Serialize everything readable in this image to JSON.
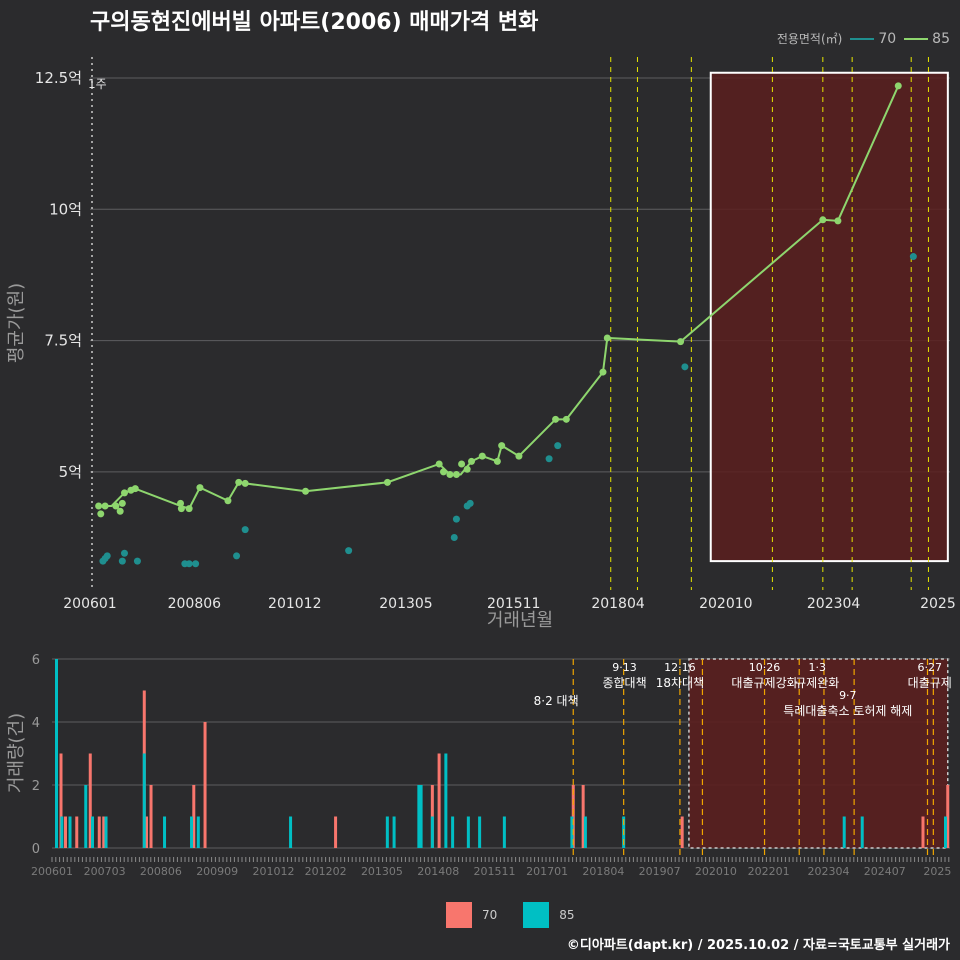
{
  "title": "구의동현진에버빌 아파트(2006) 매매가격 변화",
  "legend": {
    "title": "전용면적(㎡)",
    "items": [
      {
        "label": "70",
        "color": "#1f8f8f"
      },
      {
        "label": "85",
        "color": "#8ed66e"
      }
    ]
  },
  "bottom_legend": [
    {
      "label": "70",
      "color": "#f8766d"
    },
    {
      "label": "85",
      "color": "#00bfc4"
    }
  ],
  "footer": "©디아파트(dapt.kr) / 2025.10.02 / 자료=국토교통부 실거래가",
  "chart_data": [
    {
      "type": "line",
      "ylabel": "평균가(원)",
      "xlabel": "거래년월",
      "xlim": [
        2006.0,
        2025.95
      ],
      "ylim": [
        2.75,
        12.9
      ],
      "yticks": [
        {
          "v": 5,
          "label": "5억"
        },
        {
          "v": 7.5,
          "label": "7.5억"
        },
        {
          "v": 10,
          "label": "10억"
        },
        {
          "v": 12.5,
          "label": "12.5억"
        }
      ],
      "xticks": [
        {
          "v": 2006.0,
          "label": "200601"
        },
        {
          "v": 2008.42,
          "label": "200806"
        },
        {
          "v": 2010.75,
          "label": "201012"
        },
        {
          "v": 2013.33,
          "label": "201305"
        },
        {
          "v": 2015.83,
          "label": "201511"
        },
        {
          "v": 2018.25,
          "label": "201804"
        },
        {
          "v": 2020.75,
          "label": "202010"
        },
        {
          "v": 2023.25,
          "label": "202304"
        },
        {
          "v": 2025.67,
          "label": "2025"
        }
      ],
      "annotation": "1주",
      "policy_lines": [
        2018.08,
        2018.7,
        2019.95,
        2021.83,
        2023.0,
        2023.68,
        2025.05,
        2025.45
      ],
      "highlight": {
        "x0": 2020.4,
        "x1": 2025.9,
        "y0": 3.3,
        "y1": 12.6
      },
      "series": [
        {
          "name": "85",
          "color": "#8ed66e",
          "points": [
            [
              2006.2,
              4.35
            ],
            [
              2006.25,
              4.2
            ],
            [
              2006.35,
              4.35
            ],
            [
              2006.6,
              4.35
            ],
            [
              2006.7,
              4.25
            ],
            [
              2006.75,
              4.4
            ],
            [
              2006.8,
              4.6
            ],
            [
              2006.95,
              4.65
            ],
            [
              2007.05,
              4.68
            ],
            [
              2008.1,
              4.4
            ],
            [
              2008.12,
              4.3
            ],
            [
              2008.3,
              4.3
            ],
            [
              2008.55,
              4.7
            ],
            [
              2009.2,
              4.45
            ],
            [
              2009.45,
              4.8
            ],
            [
              2009.6,
              4.78
            ],
            [
              2011.0,
              4.63
            ],
            [
              2012.9,
              4.8
            ],
            [
              2014.1,
              5.15
            ],
            [
              2014.2,
              5.0
            ],
            [
              2014.35,
              4.95
            ],
            [
              2014.5,
              4.95
            ],
            [
              2014.62,
              5.15
            ],
            [
              2014.75,
              5.05
            ],
            [
              2014.85,
              5.2
            ],
            [
              2015.1,
              5.3
            ],
            [
              2015.45,
              5.2
            ],
            [
              2015.55,
              5.5
            ],
            [
              2015.95,
              5.3
            ],
            [
              2016.8,
              6.0
            ],
            [
              2017.05,
              6.0
            ],
            [
              2017.9,
              6.9
            ],
            [
              2018.0,
              7.55
            ],
            [
              2019.7,
              7.48
            ],
            [
              2023.0,
              9.8
            ],
            [
              2023.35,
              9.78
            ],
            [
              2024.75,
              12.35
            ]
          ]
        },
        {
          "name": "70",
          "color": "#1f8f8f",
          "points": [
            [
              2006.3,
              3.3
            ],
            [
              2006.35,
              3.35
            ],
            [
              2006.4,
              3.4
            ],
            [
              2006.75,
              3.3
            ],
            [
              2006.8,
              3.45
            ],
            [
              2007.1,
              3.3
            ],
            [
              2008.2,
              3.25
            ],
            [
              2008.3,
              3.25
            ],
            [
              2008.45,
              3.25
            ],
            [
              2009.4,
              3.4
            ],
            [
              2009.6,
              3.9
            ],
            [
              2012.0,
              3.5
            ],
            [
              2014.45,
              3.75
            ],
            [
              2014.5,
              4.1
            ],
            [
              2014.75,
              4.35
            ],
            [
              2014.82,
              4.4
            ],
            [
              2016.65,
              5.25
            ],
            [
              2016.85,
              5.5
            ],
            [
              2019.8,
              7.0
            ],
            [
              2025.1,
              9.1
            ]
          ]
        },
        {
          "name": "85-mean",
          "color": "#8ed66e",
          "points": [
            [
              2006.2,
              4.35
            ],
            [
              2006.5,
              4.35
            ],
            [
              2006.8,
              4.6
            ],
            [
              2007.05,
              4.68
            ],
            [
              2008.1,
              4.35
            ],
            [
              2008.3,
              4.3
            ],
            [
              2008.55,
              4.7
            ],
            [
              2009.2,
              4.45
            ],
            [
              2009.45,
              4.8
            ],
            [
              2009.6,
              4.78
            ],
            [
              2011.0,
              4.63
            ],
            [
              2012.9,
              4.8
            ],
            [
              2014.1,
              5.15
            ],
            [
              2014.35,
              4.95
            ],
            [
              2014.6,
              4.95
            ],
            [
              2014.85,
              5.2
            ],
            [
              2015.1,
              5.3
            ],
            [
              2015.45,
              5.2
            ],
            [
              2015.55,
              5.5
            ],
            [
              2015.95,
              5.3
            ],
            [
              2016.8,
              6.0
            ],
            [
              2017.05,
              6.0
            ],
            [
              2017.9,
              6.9
            ],
            [
              2018.0,
              7.55
            ],
            [
              2019.7,
              7.48
            ],
            [
              2023.0,
              9.8
            ],
            [
              2023.35,
              9.78
            ],
            [
              2024.75,
              12.35
            ]
          ]
        }
      ]
    },
    {
      "type": "bar",
      "ylabel": "거래량(건)",
      "xlim": [
        2006.0,
        2025.95
      ],
      "ylim": [
        0,
        6
      ],
      "yticks": [
        0,
        2,
        4,
        6
      ],
      "xticks": [
        {
          "v": 2006.0,
          "label": "200601"
        },
        {
          "v": 2007.17,
          "label": "200703"
        },
        {
          "v": 2008.42,
          "label": "200806"
        },
        {
          "v": 2009.67,
          "label": "200909"
        },
        {
          "v": 2010.92,
          "label": "201012"
        },
        {
          "v": 2012.08,
          "label": "201202"
        },
        {
          "v": 2013.33,
          "label": "201305"
        },
        {
          "v": 2014.58,
          "label": "201408"
        },
        {
          "v": 2015.83,
          "label": "201511"
        },
        {
          "v": 2017.0,
          "label": "201701"
        },
        {
          "v": 2018.25,
          "label": "201804"
        },
        {
          "v": 2019.5,
          "label": "201907"
        },
        {
          "v": 2020.75,
          "label": "202010"
        },
        {
          "v": 2021.92,
          "label": "202201"
        },
        {
          "v": 2023.25,
          "label": "202304"
        },
        {
          "v": 2024.5,
          "label": "202407"
        },
        {
          "v": 2025.67,
          "label": "2025"
        }
      ],
      "policy_lines": [
        2017.58,
        2018.7,
        2019.95,
        2020.45,
        2021.83,
        2022.6,
        2023.15,
        2023.82,
        2025.45,
        2025.58
      ],
      "policies": [
        {
          "date": "",
          "text": "8·2 대책",
          "x": 2017.2,
          "row": 1
        },
        {
          "date": "9·13",
          "text": "종합대책",
          "x": 2018.72,
          "row": 0
        },
        {
          "date": "12·16",
          "text": "18차대책",
          "x": 2019.95,
          "row": 0
        },
        {
          "date": "10·26",
          "text": "대출규제강화",
          "x": 2021.83,
          "row": 0
        },
        {
          "date": "1·3",
          "text": "규제완화",
          "x": 2023.0,
          "row": 0
        },
        {
          "date": "9·7",
          "text": "특례대출축소 토허제 해제",
          "x": 2023.68,
          "row": 2
        },
        {
          "date": "6·27",
          "text": "대출규제",
          "x": 2025.5,
          "row": 0
        }
      ],
      "highlight": {
        "x0": 2020.15,
        "x1": 2025.9
      },
      "series": [
        {
          "name": "70",
          "color": "#f8766d",
          "bars": [
            [
              2006.08,
              0
            ],
            [
              2006.2,
              3
            ],
            [
              2006.3,
              1
            ],
            [
              2006.55,
              1
            ],
            [
              2006.85,
              3
            ],
            [
              2007.05,
              1
            ],
            [
              2007.15,
              1
            ],
            [
              2008.05,
              5
            ],
            [
              2008.1,
              1
            ],
            [
              2008.2,
              2
            ],
            [
              2009.15,
              2
            ],
            [
              2009.4,
              4
            ],
            [
              2012.3,
              1
            ],
            [
              2014.45,
              2
            ],
            [
              2014.6,
              3
            ],
            [
              2017.58,
              2
            ],
            [
              2017.8,
              2
            ],
            [
              2020.0,
              1
            ],
            [
              2025.35,
              1
            ],
            [
              2025.9,
              2
            ]
          ]
        },
        {
          "name": "85",
          "color": "#00bfc4",
          "bars": [
            [
              2006.1,
              6
            ],
            [
              2006.22,
              1
            ],
            [
              2006.4,
              1
            ],
            [
              2006.75,
              2
            ],
            [
              2006.9,
              1
            ],
            [
              2007.2,
              1
            ],
            [
              2008.05,
              3
            ],
            [
              2008.5,
              1
            ],
            [
              2009.1,
              1
            ],
            [
              2009.25,
              1
            ],
            [
              2011.3,
              1
            ],
            [
              2013.45,
              1
            ],
            [
              2013.6,
              1
            ],
            [
              2014.15,
              2
            ],
            [
              2014.2,
              2
            ],
            [
              2014.45,
              1
            ],
            [
              2014.75,
              3
            ],
            [
              2014.9,
              1
            ],
            [
              2015.25,
              1
            ],
            [
              2015.5,
              1
            ],
            [
              2016.05,
              1
            ],
            [
              2017.55,
              1
            ],
            [
              2017.85,
              1
            ],
            [
              2018.7,
              1
            ],
            [
              2023.6,
              1
            ],
            [
              2024.0,
              1
            ],
            [
              2025.85,
              1
            ]
          ]
        }
      ]
    }
  ]
}
